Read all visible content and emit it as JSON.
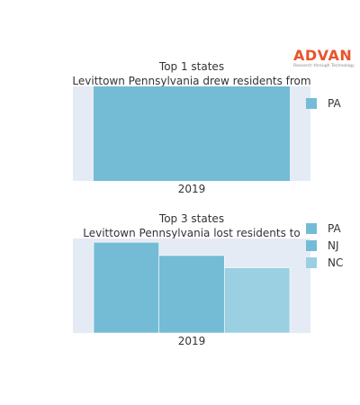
{
  "logo": {
    "text": "ADVAN",
    "tagline": "Research through Technology",
    "color": "#e8542b"
  },
  "chart_data": [
    {
      "type": "bar",
      "title_lines": [
        "Top 1 states",
        "Levittown Pennsylvania drew residents from"
      ],
      "categories": [
        "2019"
      ],
      "series": [
        {
          "name": "PA",
          "values": [
            1.0
          ],
          "color": "#74bcd6"
        }
      ],
      "ylim": [
        0,
        1.0
      ],
      "legend": "right",
      "grid": false
    },
    {
      "type": "bar",
      "title_lines": [
        "Top 3 states",
        "Levittown Pennsylvania lost residents to"
      ],
      "categories": [
        "2019"
      ],
      "series": [
        {
          "name": "PA",
          "values": [
            0.96
          ],
          "color": "#74bcd6"
        },
        {
          "name": "NJ",
          "values": [
            0.82
          ],
          "color": "#74bcd6"
        },
        {
          "name": "NC",
          "values": [
            0.69
          ],
          "color": "#9bcfe2"
        }
      ],
      "ylim": [
        0,
        1.0
      ],
      "legend": "right",
      "grid": false
    }
  ]
}
